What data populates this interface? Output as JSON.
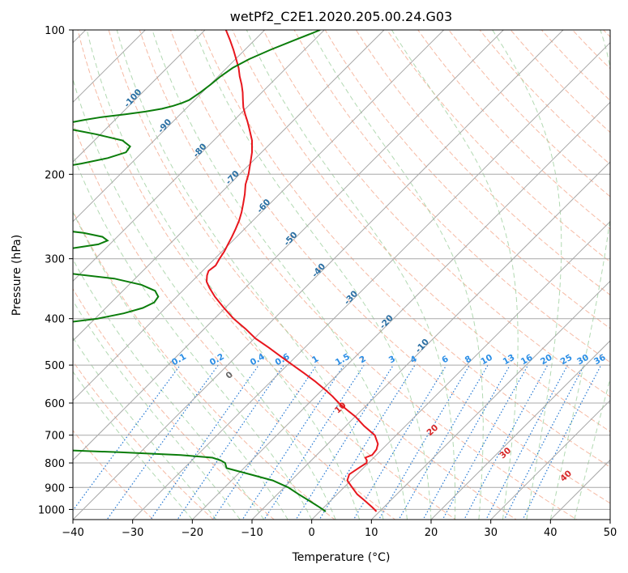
{
  "chart_data": {
    "type": "line",
    "diagram": "skew-T log-P",
    "title": "wetPf2_C2E1.2020.205.00.24.G03",
    "xlabel": "Temperature (°C)",
    "ylabel": "Pressure (hPa)",
    "xlim": [
      -40,
      50
    ],
    "ylim": [
      1050,
      100
    ],
    "y_scale": "log",
    "grid": true,
    "x_ticks": [
      -40,
      -30,
      -20,
      -10,
      0,
      10,
      20,
      30,
      40,
      50
    ],
    "y_ticks": [
      100,
      200,
      300,
      400,
      500,
      600,
      700,
      800,
      900,
      1000
    ],
    "series": [
      {
        "color": "#e8161d",
        "pressure": [
          1010,
          990,
          960,
          930,
          900,
          870,
          845,
          820,
          800,
          790,
          780,
          770,
          750,
          730,
          700,
          670,
          640,
          620,
          600,
          580,
          560,
          540,
          520,
          500,
          480,
          460,
          440,
          420,
          400,
          380,
          360,
          345,
          335,
          325,
          318,
          310,
          300,
          290,
          280,
          270,
          260,
          250,
          240,
          230,
          220,
          210,
          200,
          190,
          180,
          170,
          160,
          155,
          150,
          145,
          140,
          135,
          130,
          125,
          120,
          115,
          110,
          105,
          100
        ],
        "temperature": [
          9.5,
          8.1,
          5.8,
          3.4,
          1.4,
          -0.6,
          -1.3,
          -0.8,
          -0.3,
          -0.7,
          -1.4,
          -0.7,
          -0.9,
          -1.6,
          -3.6,
          -6.9,
          -10.0,
          -12.5,
          -15.0,
          -17.3,
          -19.9,
          -22.7,
          -25.8,
          -29.1,
          -32.5,
          -36.0,
          -39.8,
          -43.1,
          -46.8,
          -50.2,
          -53.6,
          -56.0,
          -57.5,
          -58.5,
          -59.0,
          -58.7,
          -59.2,
          -59.6,
          -60.2,
          -60.8,
          -61.5,
          -62.3,
          -63.3,
          -64.5,
          -65.8,
          -67.3,
          -68.5,
          -70.0,
          -71.6,
          -73.6,
          -76.2,
          -77.6,
          -79.1,
          -80.6,
          -81.9,
          -83.2,
          -84.7,
          -86.4,
          -88.0,
          -89.9,
          -91.9,
          -94.1,
          -96.5
        ]
      },
      {
        "color": "#0b7d0b",
        "pressure": [
          1010,
          990,
          960,
          930,
          900,
          870,
          845,
          820,
          800,
          790,
          780,
          770,
          760,
          750,
          740,
          730,
          720,
          710,
          700,
          695,
          690,
          680,
          670,
          660,
          650,
          640,
          630,
          625,
          620,
          600,
          580,
          560,
          540,
          520,
          500,
          490,
          485,
          480,
          475,
          470,
          465,
          460,
          450,
          440,
          430,
          420,
          415,
          410,
          400,
          390,
          380,
          370,
          360,
          350,
          340,
          330,
          320,
          315,
          310,
          305,
          300,
          295,
          290,
          285,
          280,
          275,
          270,
          265,
          260,
          255,
          250,
          245,
          240,
          235,
          230,
          220,
          210,
          200,
          195,
          190,
          185,
          180,
          175,
          170,
          165,
          160,
          158,
          156,
          154,
          152,
          150,
          148,
          146,
          144,
          142,
          140,
          135,
          130,
          125,
          120,
          115,
          110,
          105,
          100
        ],
        "dewpoint": [
          1.0,
          -0.7,
          -3.5,
          -6.4,
          -9.3,
          -13.1,
          -17.9,
          -22.9,
          -24.0,
          -25.2,
          -27.0,
          -32.8,
          -43.5,
          -56.3,
          -69.3,
          -76.8,
          -80.4,
          -82.2,
          -83.3,
          -82.7,
          -81.2,
          -76.3,
          -71.6,
          -70.5,
          -73.9,
          -80.2,
          -86.8,
          -89.5,
          -89.7,
          -90.0,
          -90.0,
          -90.0,
          -90.0,
          -90.0,
          -89.7,
          -83.0,
          -77.6,
          -76.2,
          -77.0,
          -79.9,
          -85.0,
          -90.0,
          -93.0,
          -94.0,
          -93.6,
          -86.3,
          -80.5,
          -75.5,
          -69.6,
          -66.1,
          -63.8,
          -62.8,
          -63.1,
          -64.6,
          -67.9,
          -73.5,
          -84.0,
          -90.3,
          -95.3,
          -96.7,
          -96.9,
          -95.8,
          -91.3,
          -85.4,
          -81.9,
          -81.0,
          -82.5,
          -86.3,
          -92.5,
          -97.5,
          -98.6,
          -99.1,
          -99.7,
          -100.4,
          -101.3,
          -102.1,
          -103.3,
          -104.2,
          -102.8,
          -98.3,
          -94.8,
          -92.7,
          -93.0,
          -95.3,
          -100.8,
          -107.4,
          -107.8,
          -107.0,
          -105.1,
          -102.7,
          -99.2,
          -96.3,
          -94.0,
          -92.6,
          -91.6,
          -90.9,
          -90.3,
          -89.9,
          -89.6,
          -89.0,
          -87.7,
          -85.7,
          -83.3,
          -80.7
        ]
      }
    ],
    "dry_adiabat_labels": [
      "-100",
      "-90",
      "-80",
      "-70",
      "-60",
      "-50",
      "-40",
      "-30",
      "-20",
      "-10"
    ],
    "moist_adiabat_labels": [
      "0",
      "10",
      "20",
      "30",
      "40"
    ],
    "mixing_ratio_labels": [
      "0.1",
      "0.2",
      "0.4",
      "0.6",
      "1",
      "1.5",
      "2",
      "3",
      "4",
      "6",
      "8",
      "10",
      "13",
      "16",
      "20",
      "25",
      "30",
      "36"
    ],
    "colors": {
      "temperature": "#e8161d",
      "dewpoint": "#0b7d0b",
      "isotherm": "#a8a8a8",
      "isobar": "#a8a8a8",
      "dry_adiabat": "#f4a98d",
      "moist_adiabat": "#9fcf9f",
      "mixing_ratio": "#2176d2",
      "dry_adiabat_label": "#2a6fa3",
      "moist_adiabat_label": "#d62728",
      "mixing_ratio_label": "#2b8ee6"
    }
  }
}
